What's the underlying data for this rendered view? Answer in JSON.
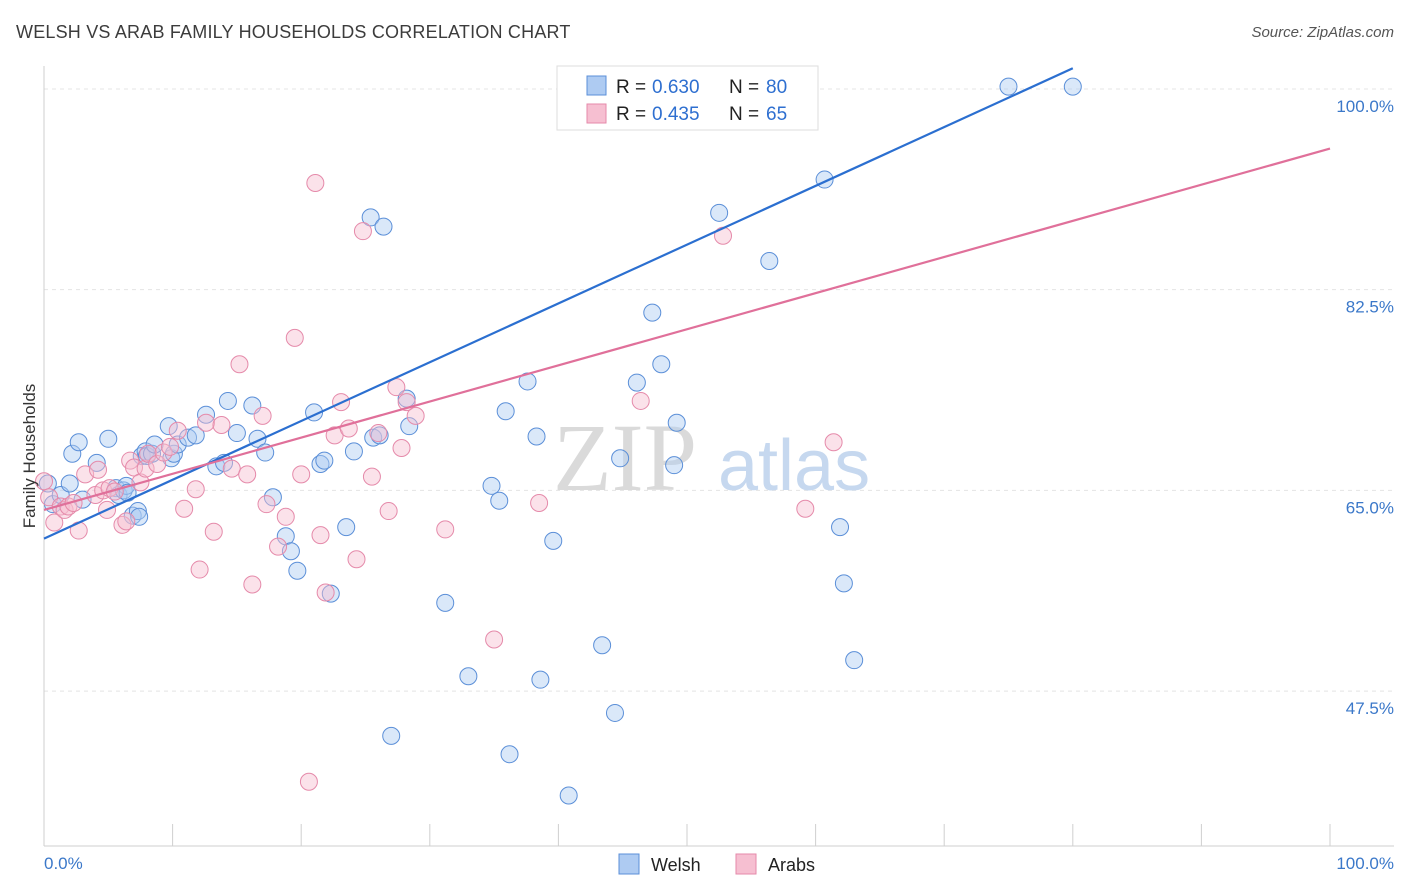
{
  "header": {
    "title": "WELSH VS ARAB FAMILY HOUSEHOLDS CORRELATION CHART",
    "source": "Source: ZipAtlas.com"
  },
  "watermark": {
    "zip": "ZIP",
    "atlas": "atlas"
  },
  "colors": {
    "welsh_fill": "#aecbf2",
    "welsh_stroke": "#5b8fd8",
    "welsh_line": "#2b6fd0",
    "arabs_fill": "#f6bfd1",
    "arabs_stroke": "#e58aaa",
    "arabs_line": "#e0709a",
    "tick_label": "#3b78c9",
    "grid": "#e4e4e4"
  },
  "legend": {
    "r_label": "R =",
    "n_label": "N =",
    "items": [
      {
        "name": "Welsh",
        "r": "0.630",
        "n": "80"
      },
      {
        "name": "Arabs",
        "r": "0.435",
        "n": "65"
      }
    ]
  },
  "chart_data": {
    "type": "scatter",
    "title": "WELSH VS ARAB FAMILY HOUSEHOLDS CORRELATION CHART",
    "xlabel": "",
    "ylabel": "Family Households",
    "xlim": [
      0,
      100
    ],
    "ylim": [
      34,
      102
    ],
    "x_tick_labels": [
      {
        "value": 0,
        "label": "0.0%"
      },
      {
        "value": 100,
        "label": "100.0%"
      }
    ],
    "y_tick_labels": [
      {
        "value": 47.5,
        "label": "47.5%"
      },
      {
        "value": 65.0,
        "label": "65.0%"
      },
      {
        "value": 82.5,
        "label": "82.5%"
      },
      {
        "value": 100.0,
        "label": "100.0%"
      }
    ],
    "grid": true,
    "legend_position": "top-center",
    "series": [
      {
        "name": "Welsh",
        "trend": {
          "x": [
            0,
            80
          ],
          "y": [
            60.8,
            101.8
          ]
        },
        "points": [
          [
            0.3,
            65.6
          ],
          [
            0.7,
            63.8
          ],
          [
            1.3,
            64.6
          ],
          [
            2.0,
            65.6
          ],
          [
            2.2,
            68.2
          ],
          [
            2.7,
            69.2
          ],
          [
            3.0,
            64.2
          ],
          [
            4.1,
            67.4
          ],
          [
            5.0,
            69.5
          ],
          [
            5.6,
            65.2
          ],
          [
            5.8,
            64.6
          ],
          [
            6.2,
            65.0
          ],
          [
            6.4,
            65.4
          ],
          [
            6.5,
            64.8
          ],
          [
            6.9,
            62.8
          ],
          [
            7.3,
            63.2
          ],
          [
            7.4,
            62.7
          ],
          [
            7.6,
            68.0
          ],
          [
            7.9,
            68.4
          ],
          [
            8.0,
            68.0
          ],
          [
            8.4,
            68.2
          ],
          [
            8.6,
            69.0
          ],
          [
            9.7,
            70.6
          ],
          [
            9.9,
            67.8
          ],
          [
            10.1,
            68.2
          ],
          [
            10.4,
            69.0
          ],
          [
            11.2,
            69.6
          ],
          [
            11.8,
            69.8
          ],
          [
            12.6,
            71.6
          ],
          [
            13.4,
            67.1
          ],
          [
            14.0,
            67.4
          ],
          [
            14.3,
            72.8
          ],
          [
            15.0,
            70.0
          ],
          [
            16.2,
            72.4
          ],
          [
            16.6,
            69.5
          ],
          [
            17.2,
            68.3
          ],
          [
            17.8,
            64.4
          ],
          [
            18.8,
            61.0
          ],
          [
            19.2,
            59.7
          ],
          [
            19.7,
            58.0
          ],
          [
            21.0,
            71.8
          ],
          [
            21.5,
            67.3
          ],
          [
            21.8,
            67.6
          ],
          [
            22.3,
            56.0
          ],
          [
            23.5,
            61.8
          ],
          [
            24.1,
            68.4
          ],
          [
            25.4,
            88.8
          ],
          [
            26.4,
            88.0
          ],
          [
            25.6,
            69.6
          ],
          [
            26.1,
            69.8
          ],
          [
            27.0,
            43.6
          ],
          [
            28.2,
            73.0
          ],
          [
            28.4,
            70.6
          ],
          [
            31.2,
            55.2
          ],
          [
            33.0,
            48.8
          ],
          [
            34.8,
            65.4
          ],
          [
            35.4,
            64.1
          ],
          [
            35.9,
            71.9
          ],
          [
            36.2,
            42.0
          ],
          [
            37.6,
            74.5
          ],
          [
            38.3,
            69.7
          ],
          [
            38.6,
            48.5
          ],
          [
            39.6,
            60.6
          ],
          [
            40.8,
            38.4
          ],
          [
            43.4,
            51.5
          ],
          [
            44.4,
            45.6
          ],
          [
            44.8,
            67.8
          ],
          [
            46.1,
            74.4
          ],
          [
            47.3,
            80.5
          ],
          [
            48.0,
            76.0
          ],
          [
            49.0,
            67.2
          ],
          [
            49.2,
            70.9
          ],
          [
            52.5,
            89.2
          ],
          [
            56.4,
            85.0
          ],
          [
            60.7,
            92.1
          ],
          [
            61.9,
            61.8
          ],
          [
            62.2,
            56.9
          ],
          [
            63.0,
            50.2
          ],
          [
            75.0,
            100.2
          ],
          [
            80.0,
            100.2
          ]
        ]
      },
      {
        "name": "Arabs",
        "trend": {
          "x": [
            0,
            100
          ],
          "y": [
            63.3,
            94.8
          ]
        },
        "points": [
          [
            0.0,
            65.8
          ],
          [
            0.4,
            64.4
          ],
          [
            0.8,
            62.2
          ],
          [
            1.3,
            63.6
          ],
          [
            1.6,
            63.3
          ],
          [
            1.9,
            63.6
          ],
          [
            2.3,
            63.9
          ],
          [
            2.7,
            61.5
          ],
          [
            3.2,
            66.4
          ],
          [
            4.0,
            64.6
          ],
          [
            4.2,
            66.8
          ],
          [
            4.6,
            65.0
          ],
          [
            4.9,
            63.3
          ],
          [
            5.1,
            65.2
          ],
          [
            5.5,
            64.9
          ],
          [
            6.1,
            62.0
          ],
          [
            6.4,
            62.3
          ],
          [
            6.7,
            67.6
          ],
          [
            7.0,
            67.0
          ],
          [
            7.5,
            65.7
          ],
          [
            7.9,
            66.9
          ],
          [
            8.1,
            68.2
          ],
          [
            8.8,
            67.3
          ],
          [
            9.3,
            68.3
          ],
          [
            9.8,
            68.8
          ],
          [
            10.4,
            70.2
          ],
          [
            10.9,
            63.4
          ],
          [
            11.8,
            65.1
          ],
          [
            12.1,
            58.1
          ],
          [
            12.6,
            70.9
          ],
          [
            13.2,
            61.4
          ],
          [
            13.8,
            70.7
          ],
          [
            14.6,
            66.9
          ],
          [
            15.2,
            76.0
          ],
          [
            15.8,
            66.4
          ],
          [
            16.2,
            56.8
          ],
          [
            17.0,
            71.5
          ],
          [
            17.3,
            63.8
          ],
          [
            18.2,
            60.1
          ],
          [
            18.8,
            62.7
          ],
          [
            19.5,
            78.3
          ],
          [
            20.0,
            66.4
          ],
          [
            20.6,
            39.6
          ],
          [
            21.1,
            91.8
          ],
          [
            21.5,
            61.1
          ],
          [
            21.9,
            56.1
          ],
          [
            22.6,
            69.8
          ],
          [
            23.1,
            72.7
          ],
          [
            23.7,
            70.4
          ],
          [
            24.3,
            59.0
          ],
          [
            24.8,
            87.6
          ],
          [
            25.5,
            66.2
          ],
          [
            26.0,
            70.0
          ],
          [
            26.8,
            63.2
          ],
          [
            27.4,
            74.0
          ],
          [
            27.8,
            68.7
          ],
          [
            28.2,
            72.7
          ],
          [
            28.9,
            71.5
          ],
          [
            31.2,
            61.6
          ],
          [
            35.0,
            52.0
          ],
          [
            38.5,
            63.9
          ],
          [
            46.4,
            72.8
          ],
          [
            52.8,
            87.2
          ],
          [
            59.2,
            63.4
          ],
          [
            61.4,
            69.2
          ]
        ]
      }
    ]
  }
}
